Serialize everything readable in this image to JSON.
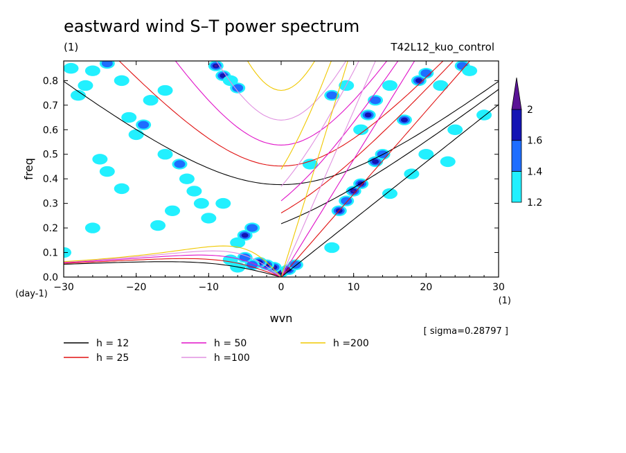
{
  "chart_data": {
    "type": "heatmap",
    "title": "eastward wind S–T power spectrum",
    "subtitle_left": "(1)",
    "subtitle_right": "T42L12_kuo_control",
    "xlabel": "wvn",
    "ylabel": "freq",
    "x_unit": "(1)",
    "y_unit": "(day-1)",
    "xlim": [
      -30,
      30
    ],
    "ylim": [
      0,
      0.88
    ],
    "x_ticks": [
      -30,
      -20,
      -10,
      0,
      10,
      20,
      30
    ],
    "x_tick_labels": [
      "−30",
      "−20",
      "−10",
      "0",
      "10",
      "20",
      "30"
    ],
    "y_ticks": [
      0,
      0.1,
      0.2,
      0.3,
      0.4,
      0.5,
      0.6,
      0.7,
      0.8
    ],
    "y_tick_labels": [
      "0.0",
      "0.1",
      "0.2",
      "0.3",
      "0.4",
      "0.5",
      "0.6",
      "0.7",
      "0.8"
    ],
    "sigma_text": "[ sigma=0.28797 ]",
    "colorbar": {
      "levels": [
        1.2,
        1.4,
        1.6,
        2
      ],
      "level_labels": [
        "1.2",
        "1.4",
        "1.6",
        "2"
      ],
      "colors": [
        "#22f0ff",
        "#1e6eff",
        "#1414b4",
        "#5a1496"
      ]
    },
    "dispersion_curves": [
      {
        "label": "h = 12",
        "h": 12,
        "color": "#000000"
      },
      {
        "label": "h = 25",
        "h": 25,
        "color": "#e01010"
      },
      {
        "label": "h = 50",
        "h": 50,
        "color": "#e010c8"
      },
      {
        "label": "h =100",
        "h": 100,
        "color": "#e090e0"
      },
      {
        "label": "h =200",
        "h": 200,
        "color": "#f0c800"
      }
    ],
    "power_regions": [
      {
        "k": 0,
        "f": 0.02,
        "level": 3
      },
      {
        "k": -1,
        "f": 0.04,
        "level": 3
      },
      {
        "k": 1,
        "f": 0.03,
        "level": 3
      },
      {
        "k": -2,
        "f": 0.05,
        "level": 2
      },
      {
        "k": -3,
        "f": 0.06,
        "level": 2
      },
      {
        "k": -4,
        "f": 0.05,
        "level": 1
      },
      {
        "k": -5,
        "f": 0.08,
        "level": 1
      },
      {
        "k": -6,
        "f": 0.04,
        "level": 0
      },
      {
        "k": -7,
        "f": 0.07,
        "level": 0
      },
      {
        "k": 2,
        "f": 0.05,
        "level": 1
      },
      {
        "k": -5,
        "f": 0.17,
        "level": 2
      },
      {
        "k": -4,
        "f": 0.2,
        "level": 1
      },
      {
        "k": -6,
        "f": 0.14,
        "level": 0
      },
      {
        "k": -9,
        "f": 0.86,
        "level": 3
      },
      {
        "k": -8,
        "f": 0.82,
        "level": 2
      },
      {
        "k": -6,
        "f": 0.77,
        "level": 1
      },
      {
        "k": -7,
        "f": 0.8,
        "level": 0
      },
      {
        "k": 8,
        "f": 0.27,
        "level": 2
      },
      {
        "k": 10,
        "f": 0.35,
        "level": 3
      },
      {
        "k": 11,
        "f": 0.38,
        "level": 2
      },
      {
        "k": 9,
        "f": 0.31,
        "level": 1
      },
      {
        "k": 13,
        "f": 0.47,
        "level": 2
      },
      {
        "k": 14,
        "f": 0.5,
        "level": 1
      },
      {
        "k": 12,
        "f": 0.66,
        "level": 2
      },
      {
        "k": 13,
        "f": 0.72,
        "level": 1
      },
      {
        "k": 11,
        "f": 0.6,
        "level": 0
      },
      {
        "k": 17,
        "f": 0.64,
        "level": 2
      },
      {
        "k": 19,
        "f": 0.8,
        "level": 2
      },
      {
        "k": 20,
        "f": 0.83,
        "level": 1
      },
      {
        "k": 22,
        "f": 0.78,
        "level": 0
      },
      {
        "k": 25,
        "f": 0.86,
        "level": 1
      },
      {
        "k": 26,
        "f": 0.84,
        "level": 0
      },
      {
        "k": 7,
        "f": 0.74,
        "level": 1
      },
      {
        "k": 9,
        "f": 0.78,
        "level": 0
      },
      {
        "k": 15,
        "f": 0.78,
        "level": 0
      },
      {
        "k": 18,
        "f": 0.42,
        "level": 0
      },
      {
        "k": 20,
        "f": 0.5,
        "level": 0
      },
      {
        "k": 23,
        "f": 0.47,
        "level": 0
      },
      {
        "k": 15,
        "f": 0.34,
        "level": 0
      },
      {
        "k": -14,
        "f": 0.46,
        "level": 1
      },
      {
        "k": -13,
        "f": 0.4,
        "level": 0
      },
      {
        "k": -12,
        "f": 0.35,
        "level": 0
      },
      {
        "k": -11,
        "f": 0.3,
        "level": 0
      },
      {
        "k": -16,
        "f": 0.5,
        "level": 0
      },
      {
        "k": -19,
        "f": 0.62,
        "level": 1
      },
      {
        "k": -20,
        "f": 0.58,
        "level": 0
      },
      {
        "k": -21,
        "f": 0.65,
        "level": 0
      },
      {
        "k": -18,
        "f": 0.72,
        "level": 0
      },
      {
        "k": -16,
        "f": 0.76,
        "level": 0
      },
      {
        "k": -22,
        "f": 0.8,
        "level": 0
      },
      {
        "k": -24,
        "f": 0.87,
        "level": 1
      },
      {
        "k": -26,
        "f": 0.84,
        "level": 0
      },
      {
        "k": -27,
        "f": 0.78,
        "level": 0
      },
      {
        "k": -28,
        "f": 0.74,
        "level": 0
      },
      {
        "k": -25,
        "f": 0.48,
        "level": 0
      },
      {
        "k": -24,
        "f": 0.43,
        "level": 0
      },
      {
        "k": -22,
        "f": 0.36,
        "level": 0
      },
      {
        "k": -15,
        "f": 0.27,
        "level": 0
      },
      {
        "k": -8,
        "f": 0.3,
        "level": 0
      },
      {
        "k": -10,
        "f": 0.24,
        "level": 0
      },
      {
        "k": -30,
        "f": 0.1,
        "level": 0
      },
      {
        "k": -29,
        "f": 0.85,
        "level": 0
      },
      {
        "k": 4,
        "f": 0.46,
        "level": 0
      },
      {
        "k": 7,
        "f": 0.12,
        "level": 0
      },
      {
        "k": -26,
        "f": 0.2,
        "level": 0
      },
      {
        "k": -17,
        "f": 0.21,
        "level": 0
      },
      {
        "k": 24,
        "f": 0.6,
        "level": 0
      },
      {
        "k": 28,
        "f": 0.66,
        "level": 0
      }
    ]
  },
  "legend": {
    "items": [
      "h = 12",
      "h = 25",
      "h = 50",
      "h =100",
      "h =200"
    ]
  }
}
